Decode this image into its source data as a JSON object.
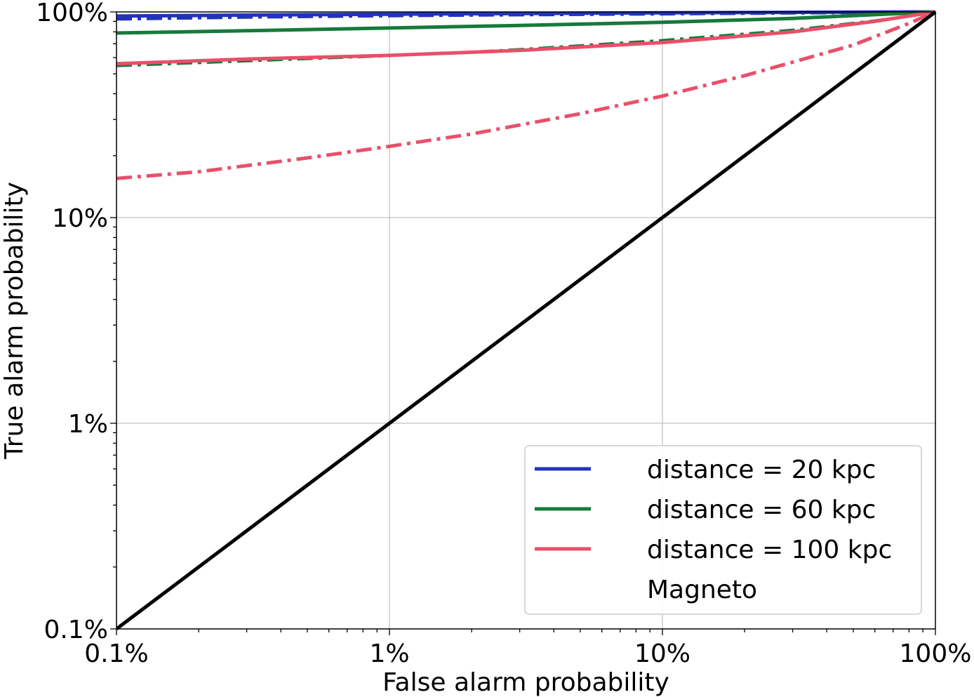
{
  "chart_data": {
    "type": "line",
    "xlabel": "False alarm probability",
    "ylabel": "True alarm probability",
    "xscale": "log",
    "yscale": "log",
    "xlim": [
      0.001,
      1
    ],
    "ylim": [
      0.001,
      1
    ],
    "xticks": [
      {
        "value": 0.001,
        "label": "0.1%"
      },
      {
        "value": 0.01,
        "label": "1%"
      },
      {
        "value": 0.1,
        "label": "10%"
      },
      {
        "value": 1,
        "label": "100%"
      }
    ],
    "yticks": [
      {
        "value": 0.001,
        "label": "0.1%"
      },
      {
        "value": 0.01,
        "label": "1%"
      },
      {
        "value": 0.1,
        "label": "10%"
      },
      {
        "value": 1,
        "label": "100%"
      }
    ],
    "grid": true,
    "legend_position": "lower-right",
    "legend": [
      {
        "label": "distance = 20 kpc",
        "color": "#2233bb",
        "style": "solid"
      },
      {
        "label": "distance = 60 kpc",
        "color": "#167a3a",
        "style": "solid"
      },
      {
        "label": "distance = 100 kpc",
        "color": "#e8506a",
        "style": "solid"
      },
      {
        "label": "Magneto",
        "color": "",
        "style": "none"
      }
    ],
    "series": [
      {
        "color": "#2233bb",
        "style": "dashdot",
        "width": 5,
        "x": [
          0.001,
          0.003,
          0.01,
          0.03,
          0.1,
          0.3,
          1
        ],
        "y": [
          0.925,
          0.945,
          0.96,
          0.97,
          0.98,
          0.99,
          1.0
        ]
      },
      {
        "color": "#2233bb",
        "style": "solid",
        "width": 5,
        "x": [
          0.001,
          0.003,
          0.01,
          0.03,
          0.1,
          0.3,
          1
        ],
        "y": [
          0.955,
          0.965,
          0.975,
          0.983,
          0.99,
          0.995,
          1.0
        ]
      },
      {
        "color": "#167a3a",
        "style": "solid",
        "width": 5,
        "x": [
          0.001,
          0.003,
          0.01,
          0.03,
          0.1,
          0.3,
          0.6,
          1
        ],
        "y": [
          0.79,
          0.81,
          0.835,
          0.86,
          0.89,
          0.93,
          0.97,
          1.0
        ]
      },
      {
        "color": "#167a3a",
        "style": "dashdot",
        "width": 3,
        "x": [
          0.001,
          0.003,
          0.01,
          0.03,
          0.1,
          0.3,
          0.6,
          1
        ],
        "y": [
          0.545,
          0.575,
          0.61,
          0.66,
          0.73,
          0.82,
          0.91,
          1.0
        ]
      },
      {
        "color": "#e8506a",
        "style": "solid",
        "width": 5,
        "x": [
          0.001,
          0.003,
          0.01,
          0.03,
          0.1,
          0.3,
          0.6,
          1
        ],
        "y": [
          0.56,
          0.59,
          0.615,
          0.65,
          0.71,
          0.8,
          0.9,
          1.0
        ]
      },
      {
        "color": "#e8506a",
        "style": "dashdot",
        "width": 5,
        "x": [
          0.001,
          0.002,
          0.005,
          0.01,
          0.02,
          0.05,
          0.1,
          0.2,
          0.5,
          0.8,
          1
        ],
        "y": [
          0.155,
          0.167,
          0.195,
          0.222,
          0.255,
          0.32,
          0.39,
          0.49,
          0.69,
          0.88,
          1.0
        ]
      },
      {
        "color": "#000000",
        "style": "solid",
        "width": 5,
        "x": [
          0.001,
          1
        ],
        "y": [
          0.001,
          1
        ]
      }
    ]
  }
}
